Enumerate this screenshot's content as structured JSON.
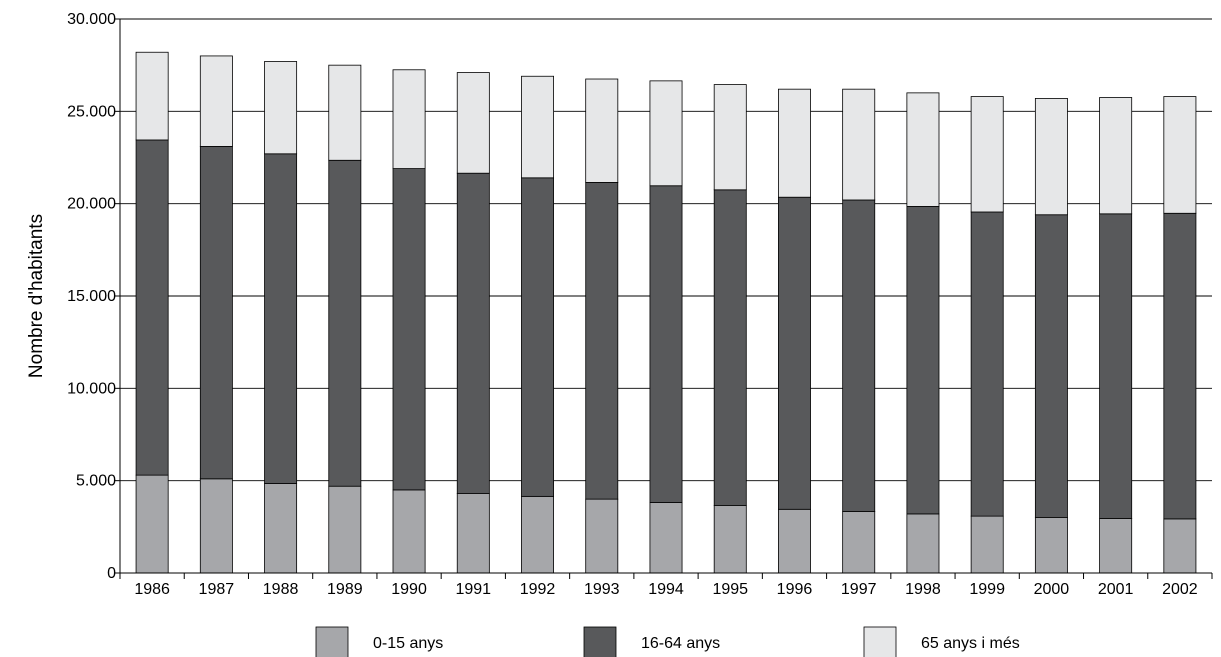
{
  "chart_data": {
    "type": "bar",
    "stacked": true,
    "title": "",
    "xlabel": "",
    "ylabel": "Nombre d'habitants",
    "ylim": [
      0,
      30000
    ],
    "yticks": [
      "0",
      "5.000",
      "10.000",
      "15.000",
      "20.000",
      "25.000",
      "30.000"
    ],
    "ytick_values": [
      0,
      5000,
      10000,
      15000,
      20000,
      25000,
      30000
    ],
    "grid": "horizontal",
    "legend_position": "bottom",
    "categories": [
      "1986",
      "1987",
      "1988",
      "1989",
      "1990",
      "1991",
      "1992",
      "1993",
      "1994",
      "1995",
      "1996",
      "1997",
      "1998",
      "1999",
      "2000",
      "2001",
      "2002"
    ],
    "series": [
      {
        "name": "0-15 anys",
        "color": "#a6a7aa",
        "values": [
          5300,
          5100,
          4850,
          4700,
          4500,
          4300,
          4150,
          4000,
          3820,
          3650,
          3450,
          3330,
          3200,
          3080,
          3000,
          2950,
          2930
        ]
      },
      {
        "name": "16-64 anys",
        "color": "#58595b",
        "values": [
          18150,
          18000,
          17850,
          17650,
          17400,
          17350,
          17250,
          17150,
          17150,
          17100,
          16900,
          16870,
          16650,
          16470,
          16400,
          16500,
          16550
        ]
      },
      {
        "name": "65 anys i més",
        "color": "#e6e7e8",
        "values": [
          4750,
          4900,
          5000,
          5150,
          5350,
          5450,
          5500,
          5600,
          5680,
          5700,
          5850,
          6000,
          6150,
          6250,
          6300,
          6300,
          6320
        ]
      }
    ]
  }
}
